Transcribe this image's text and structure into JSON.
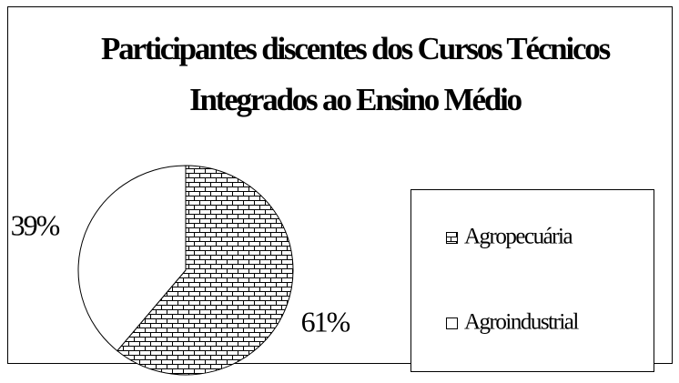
{
  "chart_data": {
    "type": "pie",
    "title": "Participantes discentes dos Cursos Técnicos Integrados ao Ensino Médio",
    "categories": [
      "Agropecuária",
      "Agroindustrial"
    ],
    "values": [
      61,
      39
    ],
    "value_labels": [
      "61%",
      "39%"
    ],
    "patterns": [
      "brick",
      "none"
    ],
    "legend": "right"
  }
}
